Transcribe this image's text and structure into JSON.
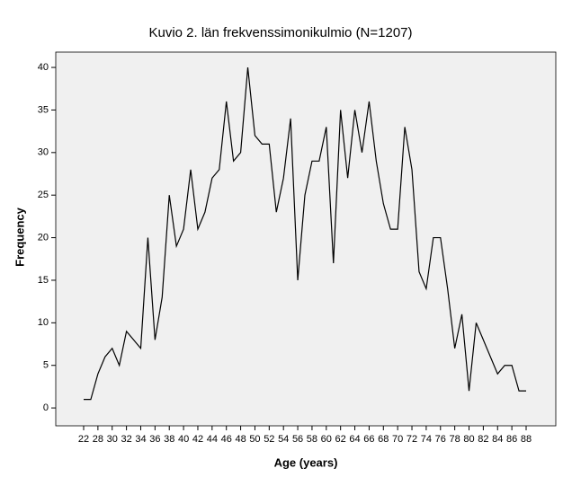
{
  "chart_data": {
    "type": "line",
    "title": "Kuvio 2. län frekvenssimonikulmio (N=1207)",
    "xlabel": "Age (years)",
    "ylabel": "Frequency",
    "categories": [
      "22",
      null,
      "28",
      null,
      "30",
      null,
      "32",
      null,
      "34",
      null,
      "36",
      null,
      "38",
      null,
      "40",
      null,
      "42",
      null,
      "44",
      null,
      "46",
      null,
      "48",
      null,
      "50",
      null,
      "52",
      null,
      "54",
      null,
      "56",
      null,
      "58",
      null,
      "60",
      null,
      "62",
      null,
      "64",
      null,
      "66",
      null,
      "68",
      null,
      "70",
      null,
      "72",
      null,
      "74",
      null,
      "76",
      null,
      "78",
      null,
      "80",
      null,
      "82",
      null,
      "84",
      null,
      "86",
      null,
      "88"
    ],
    "values": [
      1,
      1,
      4,
      6,
      7,
      5,
      9,
      8,
      7,
      20,
      8,
      13,
      25,
      19,
      21,
      28,
      21,
      23,
      27,
      28,
      36,
      29,
      30,
      40,
      32,
      31,
      31,
      23,
      27,
      34,
      15,
      25,
      29,
      29,
      33,
      17,
      35,
      27,
      35,
      30,
      36,
      29,
      24,
      21,
      21,
      33,
      28,
      16,
      14,
      20,
      20,
      14,
      7,
      11,
      2,
      10,
      8,
      6,
      4,
      5,
      5,
      2,
      2
    ],
    "color": "#000000",
    "background": "#f0f0f0",
    "ylim": [
      -2.1,
      41.8
    ],
    "yticks": [
      0,
      5,
      10,
      15,
      20,
      25,
      30,
      35,
      40
    ]
  }
}
